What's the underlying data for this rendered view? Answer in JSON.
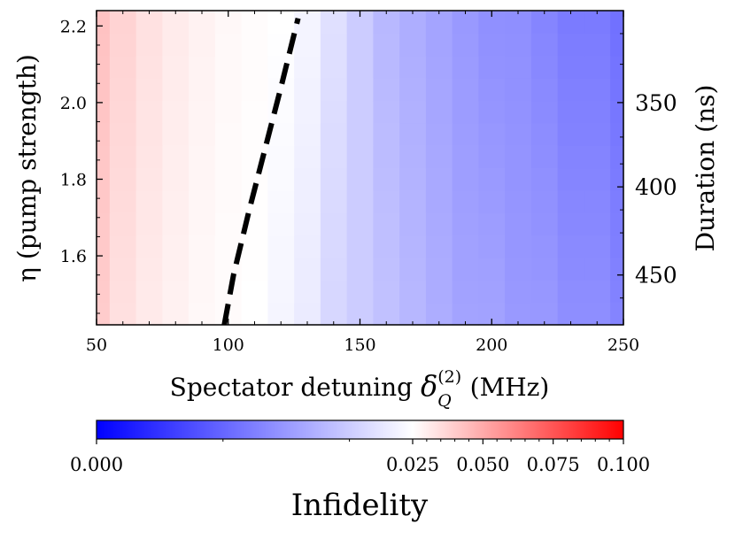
{
  "chart_data": {
    "type": "heatmap",
    "title": "",
    "xlabel": {
      "prefix": "Spectator detuning ",
      "symbol": "δ",
      "superscript": "(2)",
      "subscript": "Q",
      "suffix": " (MHz)"
    },
    "ylabel": "η (pump strength)",
    "y2label": "Duration (ns)",
    "xlim": [
      50,
      250
    ],
    "ylim": [
      1.42,
      2.24
    ],
    "x_ticks": [
      "50",
      "100",
      "150",
      "200",
      "250"
    ],
    "x_tick_values": [
      50,
      100,
      150,
      200,
      250
    ],
    "y_ticks": [
      "1.6",
      "1.8",
      "2.0",
      "2.2"
    ],
    "y_tick_values": [
      1.6,
      1.8,
      2.0,
      2.2
    ],
    "y2_ticks": [
      "350",
      "400",
      "450"
    ],
    "y2_tick_eta": [
      2.0,
      1.78,
      1.55
    ],
    "heatmap_rows": [
      {
        "eta": 2.22,
        "values": [
          0.043,
          0.038,
          0.034,
          0.031,
          0.029,
          0.027,
          0.026,
          0.025,
          0.024,
          0.022,
          0.02,
          0.018,
          0.017,
          0.016,
          0.015,
          0.014,
          0.014,
          0.013,
          0.012,
          0.012,
          0.011
        ]
      },
      {
        "eta": 1.42,
        "values": [
          0.04,
          0.034,
          0.031,
          0.029,
          0.027,
          0.026,
          0.025,
          0.024,
          0.023,
          0.021,
          0.02,
          0.019,
          0.018,
          0.017,
          0.016,
          0.016,
          0.015,
          0.015,
          0.014,
          0.014,
          0.013
        ]
      }
    ],
    "heatmap_x": [
      50,
      60,
      70,
      80,
      90,
      100,
      110,
      120,
      130,
      140,
      150,
      160,
      170,
      180,
      190,
      200,
      210,
      220,
      230,
      240,
      250
    ],
    "boundary_line": {
      "style": "dashed",
      "color": "#000000",
      "x": [
        98.5,
        102,
        108,
        114,
        120,
        126.5
      ],
      "y": [
        1.42,
        1.55,
        1.72,
        1.88,
        2.04,
        2.22
      ]
    },
    "colorbar": {
      "label": "Infidelity",
      "ticks": [
        "0.000",
        "0.025",
        "0.050",
        "0.075",
        "0.100"
      ],
      "tick_values": [
        0.0,
        0.025,
        0.05,
        0.075,
        0.1
      ],
      "mapping": "two-slope, center 0.025",
      "vmin": 0.0,
      "vcenter": 0.025,
      "vmax": 0.1,
      "colors": {
        "low": "#0000ff",
        "mid": "#ffffff",
        "high": "#ff0000"
      }
    }
  }
}
